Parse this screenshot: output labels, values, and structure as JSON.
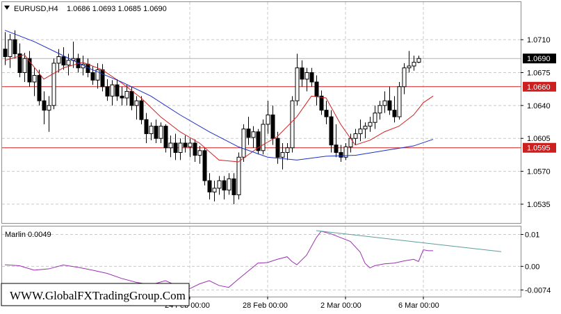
{
  "window": {
    "symbol_label": "EURUSD,H4",
    "ohlc": "1.0686 1.0693 1.0685 1.0690"
  },
  "watermark": "WWW.GlobalFXTradingGroup.Com",
  "colors": {
    "bull_body": "#ffffff",
    "bear_body": "#000000",
    "candle_outline": "#000000",
    "ma_fast": "#d42020",
    "ma_slow": "#1a2fc4",
    "level_line": "#cc1f1f",
    "indicator": "#9a2fb0",
    "trendline": "#5a9e9a",
    "grid": "#c8c8c8",
    "current_price_line": "#b4b4b4"
  },
  "chart_data": [
    {
      "type": "candlestick",
      "title": "EURUSD,H4",
      "ylim": [
        1.0515,
        1.075
      ],
      "y_ticks": [
        1.071,
        1.0675,
        1.064,
        1.0605,
        1.057,
        1.0535
      ],
      "y_tick_labels": [
        "1.0710",
        "1.0675",
        "1.0640",
        "1.0605",
        "1.0570",
        "1.0535"
      ],
      "x_tick_labels": [
        {
          "index": 38,
          "label": "24 Feb 00:00"
        },
        {
          "index": 54,
          "label": "28 Feb 00:00"
        },
        {
          "index": 70,
          "label": "2 Mar 00:00"
        },
        {
          "index": 86,
          "label": "6 Mar 00:00"
        }
      ],
      "current_price": {
        "value": 1.069,
        "label": "1.0690"
      },
      "levels": [
        {
          "value": 1.066,
          "label": "1.0660"
        },
        {
          "value": 1.0595,
          "label": "1.0595"
        }
      ],
      "candles": [
        [
          1.07,
          1.0718,
          1.0683,
          1.0692
        ],
        [
          1.0692,
          1.0716,
          1.068,
          1.071
        ],
        [
          1.071,
          1.072,
          1.069,
          1.0695
        ],
        [
          1.0695,
          1.0706,
          1.067,
          1.0675
        ],
        [
          1.0675,
          1.0696,
          1.0665,
          1.069
        ],
        [
          1.069,
          1.0698,
          1.066,
          1.0665
        ],
        [
          1.0665,
          1.068,
          1.065,
          1.0672
        ],
        [
          1.0672,
          1.0678,
          1.064,
          1.0645
        ],
        [
          1.0645,
          1.0655,
          1.062,
          1.0635
        ],
        [
          1.0635,
          1.065,
          1.0612,
          1.064
        ],
        [
          1.064,
          1.069,
          1.0636,
          1.0685
        ],
        [
          1.0685,
          1.07,
          1.0675,
          1.0692
        ],
        [
          1.0692,
          1.0702,
          1.0678,
          1.0683
        ],
        [
          1.0683,
          1.0695,
          1.0672,
          1.0688
        ],
        [
          1.0688,
          1.0708,
          1.068,
          1.069
        ],
        [
          1.069,
          1.0695,
          1.0675,
          1.068
        ],
        [
          1.068,
          1.0693,
          1.0672,
          1.0684
        ],
        [
          1.0684,
          1.069,
          1.067,
          1.0675
        ],
        [
          1.0675,
          1.0682,
          1.0662,
          1.0667
        ],
        [
          1.0667,
          1.0685,
          1.0658,
          1.0678
        ],
        [
          1.0678,
          1.0684,
          1.0655,
          1.066
        ],
        [
          1.066,
          1.0668,
          1.0645,
          1.065
        ],
        [
          1.065,
          1.0667,
          1.064,
          1.0662
        ],
        [
          1.0662,
          1.0668,
          1.0645,
          1.065
        ],
        [
          1.065,
          1.066,
          1.064,
          1.0648
        ],
        [
          1.0648,
          1.0662,
          1.064,
          1.0655
        ],
        [
          1.0655,
          1.066,
          1.0635,
          1.064
        ],
        [
          1.064,
          1.065,
          1.0625,
          1.0645
        ],
        [
          1.0645,
          1.065,
          1.062,
          1.0625
        ],
        [
          1.0625,
          1.0632,
          1.06,
          1.061
        ],
        [
          1.061,
          1.0622,
          1.0603,
          1.0618
        ],
        [
          1.0618,
          1.0625,
          1.06,
          1.0605
        ],
        [
          1.0605,
          1.0622,
          1.06,
          1.0618
        ],
        [
          1.0618,
          1.062,
          1.059,
          1.0595
        ],
        [
          1.0595,
          1.0608,
          1.0585,
          1.06
        ],
        [
          1.06,
          1.061,
          1.0582,
          1.059
        ],
        [
          1.059,
          1.0605,
          1.0582,
          1.06
        ],
        [
          1.06,
          1.0608,
          1.059,
          1.0596
        ],
        [
          1.0596,
          1.0605,
          1.0585,
          1.06
        ],
        [
          1.06,
          1.0604,
          1.058,
          1.0587
        ],
        [
          1.0587,
          1.0597,
          1.0578,
          1.0592
        ],
        [
          1.0592,
          1.0595,
          1.0555,
          1.056
        ],
        [
          1.056,
          1.0568,
          1.054,
          1.0548
        ],
        [
          1.0548,
          1.056,
          1.0538,
          1.0552
        ],
        [
          1.0552,
          1.0565,
          1.0545,
          1.056
        ],
        [
          1.056,
          1.0565,
          1.054,
          1.055
        ],
        [
          1.055,
          1.0568,
          1.0545,
          1.0562
        ],
        [
          1.0562,
          1.0568,
          1.0535,
          1.0545
        ],
        [
          1.0545,
          1.059,
          1.054,
          1.0585
        ],
        [
          1.0585,
          1.062,
          1.058,
          1.0615
        ],
        [
          1.0615,
          1.0628,
          1.0598,
          1.0606
        ],
        [
          1.0606,
          1.0618,
          1.0595,
          1.0612
        ],
        [
          1.0612,
          1.0615,
          1.0588,
          1.0592
        ],
        [
          1.0592,
          1.0625,
          1.0588,
          1.062
        ],
        [
          1.062,
          1.0645,
          1.061,
          1.063
        ],
        [
          1.063,
          1.064,
          1.0598,
          1.0605
        ],
        [
          1.0605,
          1.0612,
          1.0578,
          1.0585
        ],
        [
          1.0585,
          1.06,
          1.0572,
          1.059
        ],
        [
          1.059,
          1.06,
          1.0582,
          1.0595
        ],
        [
          1.0595,
          1.065,
          1.059,
          1.0645
        ],
        [
          1.0645,
          1.0695,
          1.064,
          1.068
        ],
        [
          1.068,
          1.0688,
          1.066,
          1.0668
        ],
        [
          1.0668,
          1.068,
          1.0655,
          1.0675
        ],
        [
          1.0675,
          1.068,
          1.066,
          1.0665
        ],
        [
          1.0665,
          1.0672,
          1.064,
          1.065
        ],
        [
          1.065,
          1.0656,
          1.063,
          1.0635
        ],
        [
          1.0635,
          1.0645,
          1.062,
          1.0628
        ],
        [
          1.0628,
          1.0635,
          1.059,
          1.0598
        ],
        [
          1.0598,
          1.062,
          1.0585,
          1.059
        ],
        [
          1.059,
          1.0598,
          1.058,
          1.0585
        ],
        [
          1.0585,
          1.06,
          1.0582,
          1.0596
        ],
        [
          1.0596,
          1.061,
          1.059,
          1.0605
        ],
        [
          1.0605,
          1.0615,
          1.0598,
          1.061
        ],
        [
          1.061,
          1.0625,
          1.0602,
          1.0615
        ],
        [
          1.0615,
          1.0622,
          1.0605,
          1.0618
        ],
        [
          1.0618,
          1.0628,
          1.0612,
          1.0622
        ],
        [
          1.0622,
          1.064,
          1.0615,
          1.0632
        ],
        [
          1.0632,
          1.0645,
          1.0625,
          1.064
        ],
        [
          1.064,
          1.0655,
          1.0632,
          1.0645
        ],
        [
          1.0645,
          1.066,
          1.063,
          1.0635
        ],
        [
          1.0635,
          1.065,
          1.0622,
          1.0628
        ],
        [
          1.0628,
          1.0665,
          1.0625,
          1.066
        ],
        [
          1.066,
          1.0685,
          1.0652,
          1.068
        ],
        [
          1.068,
          1.0698,
          1.0675,
          1.0682
        ],
        [
          1.0682,
          1.0693,
          1.0677,
          1.0686
        ],
        [
          1.0686,
          1.0693,
          1.0685,
          1.069
        ]
      ],
      "series": [
        {
          "type": "line",
          "values": [
            {
              "i": 0,
              "v": 1.0688
            },
            {
              "i": 4,
              "v": 1.0694
            },
            {
              "i": 8,
              "v": 1.0668
            },
            {
              "i": 12,
              "v": 1.068
            },
            {
              "i": 16,
              "v": 1.0686
            },
            {
              "i": 20,
              "v": 1.0678
            },
            {
              "i": 24,
              "v": 1.0664
            },
            {
              "i": 28,
              "v": 1.0648
            },
            {
              "i": 32,
              "v": 1.0628
            },
            {
              "i": 36,
              "v": 1.0612
            },
            {
              "i": 40,
              "v": 1.06
            },
            {
              "i": 44,
              "v": 1.0582
            },
            {
              "i": 48,
              "v": 1.058
            },
            {
              "i": 52,
              "v": 1.0595
            },
            {
              "i": 56,
              "v": 1.0607
            },
            {
              "i": 60,
              "v": 1.0628
            },
            {
              "i": 63,
              "v": 1.065
            },
            {
              "i": 66,
              "v": 1.0648
            },
            {
              "i": 69,
              "v": 1.062
            },
            {
              "i": 72,
              "v": 1.0598
            },
            {
              "i": 75,
              "v": 1.0603
            },
            {
              "i": 78,
              "v": 1.0612
            },
            {
              "i": 81,
              "v": 1.0618
            },
            {
              "i": 84,
              "v": 1.063
            },
            {
              "i": 86,
              "v": 1.0643
            },
            {
              "i": 88,
              "v": 1.065
            }
          ]
        },
        {
          "type": "line",
          "values": [
            {
              "i": 0,
              "v": 1.072
            },
            {
              "i": 6,
              "v": 1.0708
            },
            {
              "i": 12,
              "v": 1.0693
            },
            {
              "i": 18,
              "v": 1.0678
            },
            {
              "i": 24,
              "v": 1.0665
            },
            {
              "i": 30,
              "v": 1.065
            },
            {
              "i": 36,
              "v": 1.063
            },
            {
              "i": 42,
              "v": 1.0612
            },
            {
              "i": 48,
              "v": 1.0596
            },
            {
              "i": 54,
              "v": 1.0585
            },
            {
              "i": 60,
              "v": 1.0582
            },
            {
              "i": 66,
              "v": 1.0586
            },
            {
              "i": 72,
              "v": 1.0587
            },
            {
              "i": 78,
              "v": 1.0592
            },
            {
              "i": 84,
              "v": 1.0597
            },
            {
              "i": 88,
              "v": 1.0604
            }
          ]
        }
      ]
    },
    {
      "type": "line",
      "title": "Marlin 0.0049",
      "ylim": [
        -0.0095,
        0.0125
      ],
      "y_ticks": [
        0.01,
        0.0,
        -0.0074
      ],
      "y_tick_labels": [
        "0.01",
        "0.00",
        "-0.0074"
      ],
      "x_tick_labels": [
        {
          "index": 38,
          "label": "24 Feb 00:00"
        },
        {
          "index": 54,
          "label": "28 Feb 00:00"
        },
        {
          "index": 70,
          "label": "2 Mar 00:00"
        },
        {
          "index": 86,
          "label": "6 Mar 00:00"
        }
      ],
      "series": [
        {
          "values": [
            {
              "i": 0,
              "v": 0.0005
            },
            {
              "i": 3,
              "v": 0.0002
            },
            {
              "i": 6,
              "v": -0.0012
            },
            {
              "i": 9,
              "v": -0.0008
            },
            {
              "i": 12,
              "v": 0.0004
            },
            {
              "i": 15,
              "v": -0.0003
            },
            {
              "i": 18,
              "v": -0.0012
            },
            {
              "i": 21,
              "v": -0.0022
            },
            {
              "i": 24,
              "v": -0.0038
            },
            {
              "i": 27,
              "v": -0.005
            },
            {
              "i": 30,
              "v": -0.0058
            },
            {
              "i": 33,
              "v": -0.0045
            },
            {
              "i": 36,
              "v": -0.0065
            },
            {
              "i": 38,
              "v": -0.007
            },
            {
              "i": 40,
              "v": -0.0055
            },
            {
              "i": 42,
              "v": -0.0045
            },
            {
              "i": 44,
              "v": -0.006
            },
            {
              "i": 46,
              "v": -0.0066
            },
            {
              "i": 48,
              "v": -0.004
            },
            {
              "i": 50,
              "v": -0.0015
            },
            {
              "i": 52,
              "v": 0.001
            },
            {
              "i": 54,
              "v": 0.0012
            },
            {
              "i": 56,
              "v": 0.0022
            },
            {
              "i": 58,
              "v": 0.003
            },
            {
              "i": 59,
              "v": 0.0015
            },
            {
              "i": 60,
              "v": 0.0005
            },
            {
              "i": 62,
              "v": 0.0035
            },
            {
              "i": 64,
              "v": 0.009
            },
            {
              "i": 65,
              "v": 0.011
            },
            {
              "i": 67,
              "v": 0.0102
            },
            {
              "i": 69,
              "v": 0.009
            },
            {
              "i": 71,
              "v": 0.0078
            },
            {
              "i": 73,
              "v": 0.0045
            },
            {
              "i": 74,
              "v": 0.001
            },
            {
              "i": 75,
              "v": -0.0005
            },
            {
              "i": 76,
              "v": 0.0002
            },
            {
              "i": 78,
              "v": 0.0008
            },
            {
              "i": 80,
              "v": 0.001
            },
            {
              "i": 82,
              "v": 0.0017
            },
            {
              "i": 84,
              "v": 0.0022
            },
            {
              "i": 85,
              "v": 0.0015
            },
            {
              "i": 86,
              "v": 0.0052
            },
            {
              "i": 87,
              "v": 0.0049
            },
            {
              "i": 88,
              "v": 0.0049
            }
          ]
        }
      ],
      "trendline": [
        {
          "i": 64,
          "v": 0.0112
        },
        {
          "i": 102,
          "v": 0.0046
        }
      ]
    }
  ]
}
